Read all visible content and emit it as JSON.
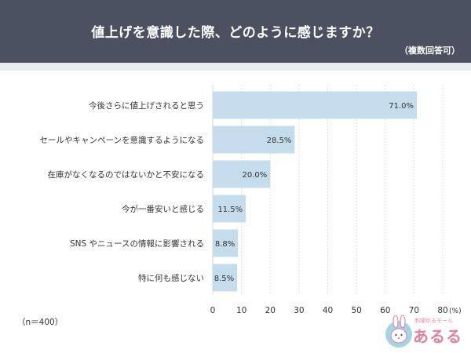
{
  "header": {
    "title": "値上げを意識した際、どのように感じますか？",
    "note": "（複数回答可）"
  },
  "footer": {
    "sample_note": "（n＝400）",
    "logo_sub": "刺繍ゆるモール",
    "logo_main": "あるる"
  },
  "colors": {
    "header_bg": "#4b5160",
    "bar": "#c5dcec",
    "grid": "#dddddd",
    "logo": "#e0829e"
  },
  "chart_data": {
    "type": "bar",
    "orientation": "horizontal",
    "categories": [
      "今後さらに値上げされると思う",
      "セールやキャンペーンを意識するようになる",
      "在庫がなくなるのではないかと不安になる",
      "今が一番安いと感じる",
      "SNS やニュースの情報に影響される",
      "特に何も感じない"
    ],
    "values": [
      71.0,
      28.5,
      20.0,
      11.5,
      8.8,
      8.5
    ],
    "value_labels": [
      "71.0%",
      "28.5%",
      "20.0%",
      "11.5%",
      "8.8%",
      "8.5%"
    ],
    "xlim": [
      0,
      80
    ],
    "xticks": [
      0,
      10,
      20,
      30,
      40,
      50,
      60,
      70,
      80
    ],
    "xunit": "(%)",
    "grid": true
  }
}
